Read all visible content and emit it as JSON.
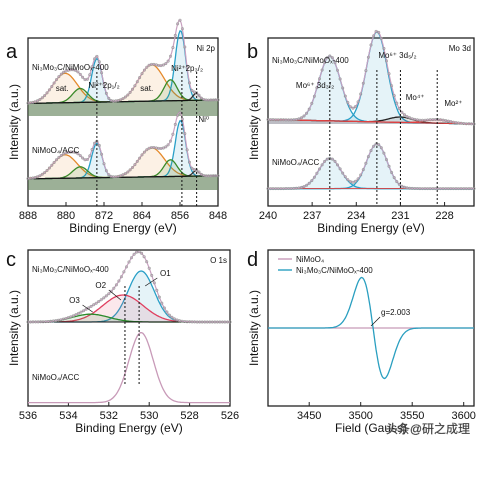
{
  "chart_data": [
    {
      "panel": "a",
      "type": "line",
      "corner_label": "Ni 2p",
      "xlabel": "Binding Energy (eV)",
      "ylabel": "Intensity (a.u.)",
      "xlim": [
        888,
        848
      ],
      "xticks": [
        888,
        880,
        872,
        864,
        856,
        848
      ],
      "reference_lines_eV": [
        873.5,
        855.6,
        852.5
      ],
      "samples": [
        {
          "name": "Ni3Mo3C/NiMoOx-400",
          "display": "Ni₃Mo₃C/NiMoOₓ-400"
        },
        {
          "name": "NiMoO4/ACC",
          "display": "NiMoO₄/ACC"
        }
      ],
      "peak_labels": [
        "sat.",
        "Ni²⁺2p₁/₂",
        "sat.",
        "Ni²⁺2p₃/₂",
        "Ni⁰"
      ],
      "components": [
        {
          "label": "sat.",
          "center": 880,
          "color": "#e58a2c"
        },
        {
          "label": "Ni2+ 2p1/2",
          "center": 873.5,
          "color": "#2aa0c8"
        },
        {
          "label": "sat.",
          "center": 862,
          "color": "#e58a2c"
        },
        {
          "label": "Ni2+ 2p3/2",
          "center": 855.8,
          "color": "#2aa0c8"
        },
        {
          "label": "Ni0",
          "center": 852.6,
          "color": "#333333"
        }
      ]
    },
    {
      "panel": "b",
      "type": "line",
      "corner_label": "Mo 3d",
      "xlabel": "Binding Energy (eV)",
      "ylabel": "Intensity (a.u.)",
      "xlim": [
        240,
        226
      ],
      "xticks": [
        240,
        237,
        234,
        231,
        228
      ],
      "reference_lines_eV": [
        235.8,
        232.6,
        231,
        228.5
      ],
      "samples": [
        {
          "name": "Ni3Mo3C/NiMoOx-400",
          "display": "Ni₃Mo₃C/NiMoOₓ-400"
        },
        {
          "name": "NiMoO4/ACC",
          "display": "NiMoO₄/ACC"
        }
      ],
      "peak_labels": [
        "Mo⁶⁺ 3d₃/₂",
        "Mo⁶⁺ 3d₅/₂",
        "Mo⁴⁺",
        "Mo²⁺"
      ],
      "components": [
        {
          "label": "Mo6+ 3d3/2",
          "center": 235.8,
          "color": "#2aa0c8"
        },
        {
          "label": "Mo6+ 3d5/2",
          "center": 232.6,
          "color": "#2aa0c8"
        },
        {
          "label": "Mo4+",
          "center": 231,
          "color": "#222222"
        },
        {
          "label": "Mo2+",
          "center": 228.5,
          "color": "#e04040"
        }
      ]
    },
    {
      "panel": "c",
      "type": "line",
      "corner_label": "O 1s",
      "xlabel": "Binding Energy (eV)",
      "ylabel": "Intensity (a.u.)",
      "xlim": [
        536,
        526
      ],
      "xticks": [
        536,
        534,
        532,
        530,
        528,
        526
      ],
      "reference_lines_eV": [
        531.2,
        530.5
      ],
      "samples": [
        {
          "name": "Ni3Mo3C/NiMoOx-400",
          "display": "Ni₃Mo₃C/NiMoOₓ-400"
        },
        {
          "name": "NiMoO4/ACC",
          "display": "NiMoO₄/ACC"
        }
      ],
      "peak_labels": [
        "O1",
        "O2",
        "O3"
      ],
      "components": [
        {
          "label": "O1",
          "center": 530.4,
          "color": "#2aa0c8"
        },
        {
          "label": "O2",
          "center": 531.2,
          "color": "#e04060"
        },
        {
          "label": "O3",
          "center": 532.8,
          "color": "#2a8a2a"
        }
      ]
    },
    {
      "panel": "d",
      "type": "line",
      "xlabel": "Field (Gauss)",
      "ylabel": "Intensity (a.u.)",
      "xlim": [
        3410,
        3610
      ],
      "xticks": [
        3450,
        3500,
        3550,
        3600
      ],
      "annotation": "g=2.003",
      "series": [
        {
          "name": "NiMoO₄",
          "color": "#c89ab8"
        },
        {
          "name": "Ni₃Mo₃C/NiMoOₓ-400",
          "color": "#2a9fc0"
        }
      ]
    }
  ],
  "watermark": "头条@研之成理"
}
